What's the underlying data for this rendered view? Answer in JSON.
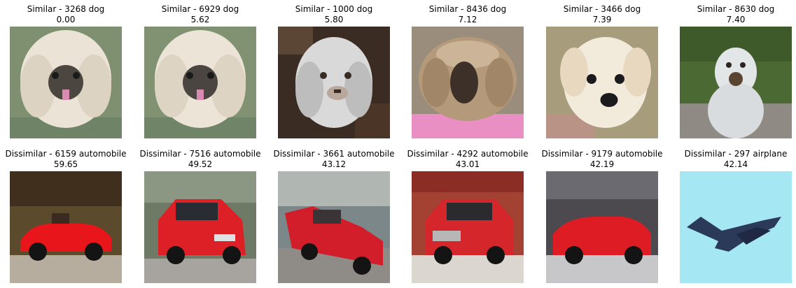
{
  "similar": [
    {
      "label": "Similar - 3268 dog",
      "score": "0.00",
      "subject": "fluffy-white-dog",
      "colors": {
        "bg": "#7f9071",
        "fur": "#eae3d6",
        "face": "#4b4640"
      }
    },
    {
      "label": "Similar - 6929 dog",
      "score": "5.62",
      "subject": "fluffy-white-dog",
      "colors": {
        "bg": "#809272",
        "fur": "#ebe4d7",
        "face": "#4a4540"
      }
    },
    {
      "label": "Similar - 1000 dog",
      "score": "5.80",
      "subject": "white-dog-on-dark",
      "colors": {
        "bg": "#3a2c22",
        "fur": "#d9d9d9",
        "face": "#5b4a3c"
      }
    },
    {
      "label": "Similar - 8436 dog",
      "score": "7.12",
      "subject": "shaggy-tan-dog",
      "colors": {
        "bg": "#9a8d7c",
        "fur": "#b49a7a",
        "face": "#3c3028",
        "accent": "#ea8fc4"
      }
    },
    {
      "label": "Similar - 3466 dog",
      "score": "7.39",
      "subject": "white-puppy",
      "colors": {
        "bg": "#a79c7c",
        "fur": "#f2eadb",
        "face": "#1b1a1c"
      }
    },
    {
      "label": "Similar - 8630 dog",
      "score": "7.40",
      "subject": "white-dog-outdoors",
      "colors": {
        "bg": "#4b6a33",
        "fur": "#e2e6e7",
        "face": "#5a4432"
      }
    }
  ],
  "dissimilar": [
    {
      "label": "Dissimilar - 6159 automobile",
      "score": "59.65",
      "subject": "red-convertible",
      "colors": {
        "bg": "#5b4a2c",
        "body": "#e8161a",
        "ground": "#b7ad9e"
      }
    },
    {
      "label": "Dissimilar - 7516 automobile",
      "score": "49.52",
      "subject": "red-hatchback",
      "colors": {
        "bg": "#6e7966",
        "body": "#dd1f26",
        "ground": "#a7a39e"
      }
    },
    {
      "label": "Dissimilar - 3661 automobile",
      "score": "43.12",
      "subject": "red-sedan",
      "colors": {
        "bg": "#7c8789",
        "body": "#d21d2b",
        "ground": "#8f8c87"
      }
    },
    {
      "label": "Dissimilar - 4292 automobile",
      "score": "43.01",
      "subject": "red-suv",
      "colors": {
        "bg": "#a34132",
        "body": "#d5272b",
        "ground": "#dcd6d0"
      }
    },
    {
      "label": "Dissimilar - 9179 automobile",
      "score": "42.19",
      "subject": "red-convertible-showroom",
      "colors": {
        "bg": "#4c4a4f",
        "body": "#dd1d23",
        "ground": "#c7c7c9"
      }
    },
    {
      "label": "Dissimilar - 297 airplane",
      "score": "42.14",
      "subject": "dark-airplane-sky",
      "colors": {
        "bg": "#a6e7f4",
        "body": "#2c3a5a",
        "ground": "#a6e7f4"
      }
    }
  ]
}
